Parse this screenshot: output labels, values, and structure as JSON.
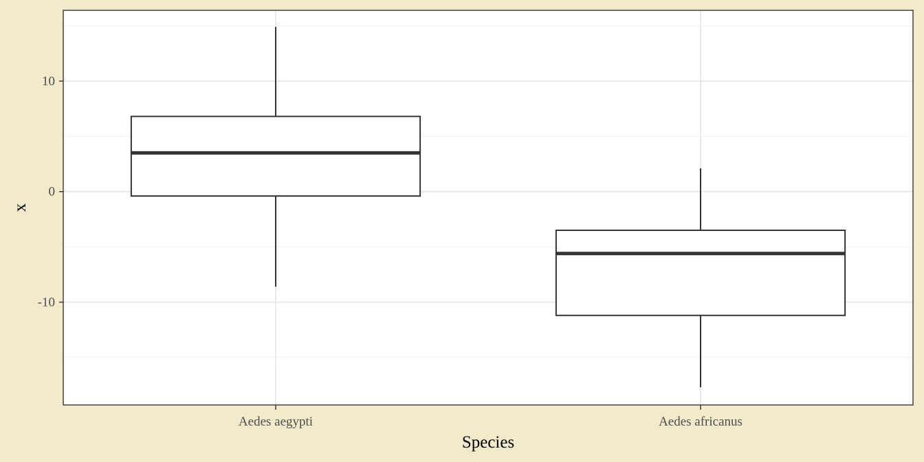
{
  "colors": {
    "page_background": "#F3E9CB",
    "panel_background": "#FFFFFF",
    "grid_major": "#E8E8E8",
    "grid_minor": "#F3F3F3",
    "box_stroke": "#333333",
    "median": "#333333"
  },
  "chart_data": {
    "type": "box",
    "title": "",
    "xlabel": "Species",
    "ylabel": "x",
    "ylim": [
      -19.3,
      16.4
    ],
    "y_ticks": [
      -10,
      0,
      10
    ],
    "y_tick_labels": [
      "-10",
      "0",
      "10"
    ],
    "grid": true,
    "categories": [
      "Aedes aegypti",
      "Aedes africanus"
    ],
    "boxes": [
      {
        "category": "Aedes aegypti",
        "whisker_low": -8.6,
        "q1": -0.4,
        "median": 3.5,
        "q3": 6.8,
        "whisker_high": 14.9
      },
      {
        "category": "Aedes africanus",
        "whisker_low": -17.7,
        "q1": -11.2,
        "median": -5.6,
        "q3": -3.5,
        "whisker_high": 2.1
      }
    ]
  }
}
